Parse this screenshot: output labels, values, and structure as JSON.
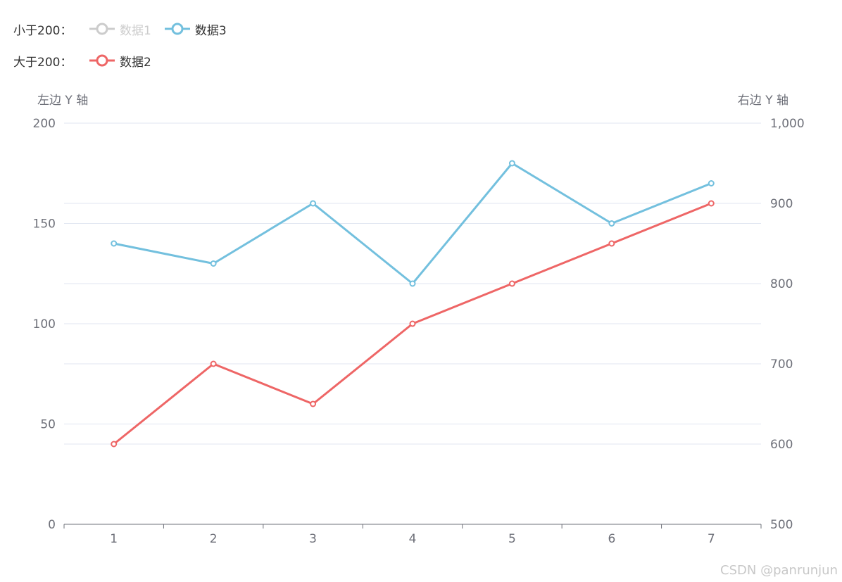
{
  "legend": {
    "groups": [
      {
        "title": "小于200：",
        "items": [
          {
            "label": "数据1",
            "color": "#cccccc",
            "active": false
          },
          {
            "label": "数据3",
            "color": "#73c0de",
            "active": true
          }
        ]
      },
      {
        "title": "大于200：",
        "items": [
          {
            "label": "数据2",
            "color": "#ee6666",
            "active": true
          }
        ]
      }
    ]
  },
  "watermark": "CSDN @panrunjun",
  "chart_data": {
    "type": "line",
    "categories": [
      "1",
      "2",
      "3",
      "4",
      "5",
      "6",
      "7"
    ],
    "y_left": {
      "name": "左边 Y 轴",
      "min": 0,
      "max": 200,
      "ticks": [
        0,
        50,
        100,
        150,
        200
      ],
      "tick_labels": [
        "0",
        "50",
        "100",
        "150",
        "200"
      ]
    },
    "y_right": {
      "name": "右边 Y 轴",
      "min": 500,
      "max": 1000,
      "ticks": [
        500,
        600,
        700,
        800,
        900,
        1000
      ],
      "tick_labels": [
        "500",
        "600",
        "700",
        "800",
        "900",
        "1,000"
      ]
    },
    "grid": true,
    "legend_position": "top-left",
    "series": [
      {
        "name": "数据2",
        "axis": "left",
        "color": "#ee6666",
        "values": [
          40,
          80,
          60,
          100,
          120,
          140,
          160
        ]
      },
      {
        "name": "数据3",
        "axis": "right",
        "color": "#73c0de",
        "values": [
          850,
          825,
          900,
          800,
          950,
          875,
          925
        ]
      }
    ]
  }
}
